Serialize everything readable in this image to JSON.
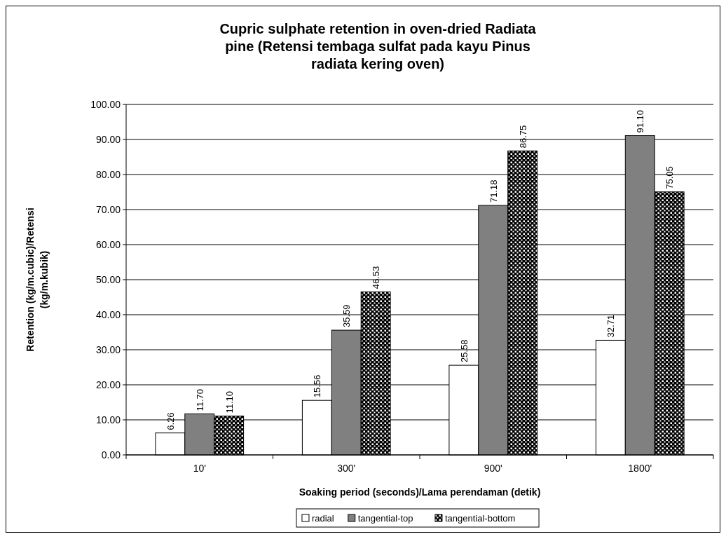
{
  "chart_data": {
    "type": "bar",
    "title": "Cupric sulphate retention in oven-dried Radiata pine (Retensi tembaga sulfat pada kayu Pinus radiata kering oven)",
    "xlabel": "Soaking period (seconds)/Lama perendaman (detik)",
    "ylabel": "Retention (kg/m.cubic)/Retensi (kg/m.kubik)",
    "categories": [
      "10'",
      "300'",
      "900'",
      "1800'"
    ],
    "series": [
      {
        "name": "radial",
        "color": "#ffffff",
        "values": [
          6.26,
          15.56,
          25.58,
          32.71
        ],
        "value_labels": [
          "6.26",
          "15.56",
          "25.58",
          "32.71"
        ]
      },
      {
        "name": "tangential-top",
        "color": "#808080",
        "values": [
          11.7,
          35.59,
          71.18,
          91.1
        ],
        "value_labels": [
          "11.70",
          "35.59",
          "71.18",
          "91.10"
        ]
      },
      {
        "name": "tangential-bottom",
        "color": "#000000",
        "values": [
          11.1,
          46.53,
          86.75,
          75.05
        ],
        "value_labels": [
          "11.10",
          "46.53",
          "86.75",
          "75.05"
        ]
      }
    ],
    "ylim": [
      0,
      100
    ],
    "yticks": [
      {
        "value": 0,
        "label": "0.00"
      },
      {
        "value": 10,
        "label": "10.00"
      },
      {
        "value": 20,
        "label": "20.00"
      },
      {
        "value": 30,
        "label": "30.00"
      },
      {
        "value": 40,
        "label": "40.00"
      },
      {
        "value": 50,
        "label": "50.00"
      },
      {
        "value": 60,
        "label": "60.00"
      },
      {
        "value": 70,
        "label": "70.00"
      },
      {
        "value": 80,
        "label": "80.00"
      },
      {
        "value": 90,
        "label": "90.00"
      },
      {
        "value": 100,
        "label": "100.00"
      }
    ],
    "grid": "y",
    "legend": "bottom"
  }
}
